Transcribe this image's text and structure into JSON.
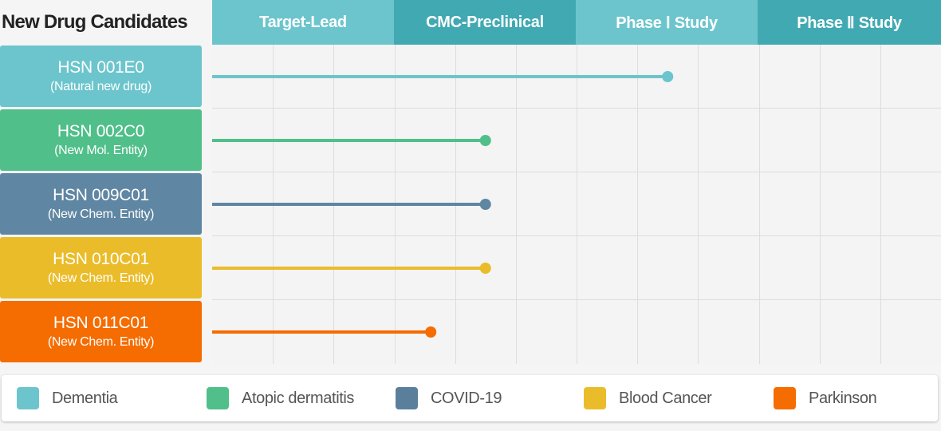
{
  "chart_data": {
    "type": "bar",
    "title": "New Drug Candidates",
    "stages": [
      "Target-Lead",
      "CMC-Preclinical",
      "Phase Ⅰ Study",
      "Phase Ⅱ Study"
    ],
    "stage_colors": [
      "#6cc5cd",
      "#41a9b2",
      "#6cc5cd",
      "#41a9b2"
    ],
    "grid": true,
    "legend_position": "bottom",
    "candidates": [
      {
        "code": "HSN 001E0",
        "type": "(Natural new drug)",
        "indication": "Dementia",
        "color": "#6cc5cd",
        "progress": 2.5
      },
      {
        "code": "HSN 002C0",
        "type": "(New Mol. Entity)",
        "indication": "Atopic dermatitis",
        "color": "#50bf8a",
        "progress": 1.5
      },
      {
        "code": "HSN 009C01",
        "type": "(New Chem. Entity)",
        "indication": "COVID-19",
        "color": "#5f86a2",
        "progress": 1.5
      },
      {
        "code": "HSN 010C01",
        "type": "(New Chem. Entity)",
        "indication": "Blood Cancer",
        "color": "#ebbc2a",
        "progress": 1.5
      },
      {
        "code": "HSN 011C01",
        "type": "(New Chem. Entity)",
        "indication": "Parkinson",
        "color": "#f56c00",
        "progress": 1.2
      }
    ]
  },
  "legend": [
    {
      "label": "Dementia",
      "color": "#6cc5cd"
    },
    {
      "label": "Atopic dermatitis",
      "color": "#50bf8a"
    },
    {
      "label": "COVID-19",
      "color": "#5a7f9c"
    },
    {
      "label": "Blood Cancer",
      "color": "#ebbc2a"
    },
    {
      "label": "Parkinson",
      "color": "#f56c00"
    }
  ]
}
